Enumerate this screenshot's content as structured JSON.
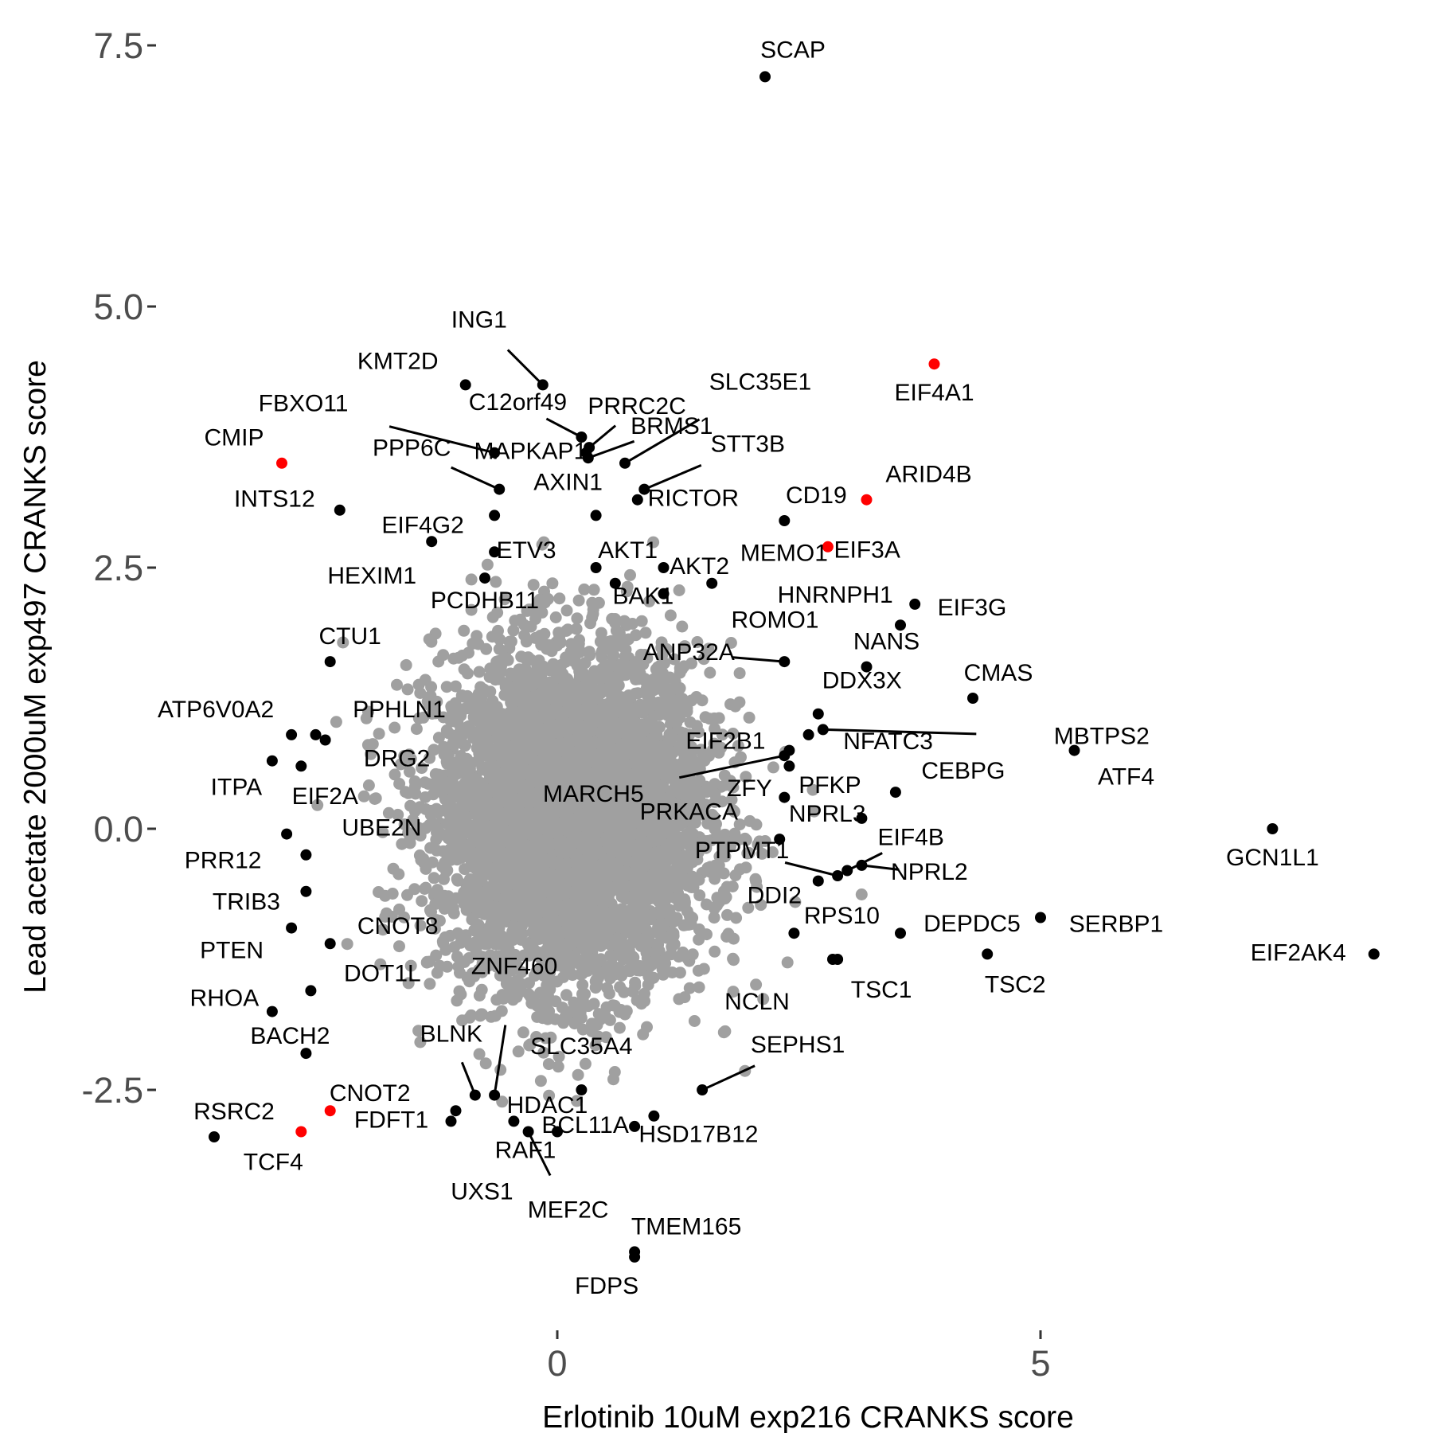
{
  "chart_data": {
    "type": "scatter",
    "xlabel": "Erlotinib 10uM exp216 CRANKS score",
    "ylabel": "Lead acetate 2000uM exp497 CRANKS score",
    "xlim": [
      -3.9,
      8.5
    ],
    "ylim": [
      -4.7,
      7.8
    ],
    "x_ticks": [
      {
        "value": 0,
        "label": "0"
      },
      {
        "value": 5,
        "label": "5"
      }
    ],
    "y_ticks": [
      {
        "value": 7.5,
        "label": "7.5"
      },
      {
        "value": 5.0,
        "label": "5.0"
      },
      {
        "value": 2.5,
        "label": "2.5"
      },
      {
        "value": 0.0,
        "label": "0.0"
      },
      {
        "value": -2.5,
        "label": "-2.5"
      }
    ],
    "grid": false,
    "background_color": "#ffffff",
    "colors": {
      "background_genes": "#a0a0a0",
      "labeled_genes": "#000000",
      "highlighted_genes": "#ff0000"
    },
    "background_cloud": {
      "description": "thousands of unlabeled genes (gray), roughly centered at (0,0)",
      "center": [
        0.15,
        0.1
      ],
      "sd": [
        0.7,
        0.8
      ]
    },
    "labeled_genes": [
      {
        "label": "SCAP",
        "x": 2.15,
        "y": 7.2,
        "color": "black"
      },
      {
        "label": "EIF4A1",
        "x": 3.9,
        "y": 4.45,
        "color": "red"
      },
      {
        "label": "ING1",
        "x": -0.15,
        "y": 4.25,
        "color": "black"
      },
      {
        "label": "KMT2D",
        "x": -0.95,
        "y": 4.25,
        "color": "black"
      },
      {
        "label": "PRRC2C",
        "x": 0.33,
        "y": 3.65,
        "color": "black"
      },
      {
        "label": "SLC35E1",
        "x": 0.7,
        "y": 3.5,
        "color": "black"
      },
      {
        "label": "C12orf49",
        "x": 0.25,
        "y": 3.75,
        "color": "black"
      },
      {
        "label": "BRMS1",
        "x": 0.32,
        "y": 3.55,
        "color": "black"
      },
      {
        "label": "FBXO11",
        "x": -0.65,
        "y": 3.6,
        "color": "black"
      },
      {
        "label": "MAPKAP1",
        "x": 0.3,
        "y": 3.6,
        "color": "black"
      },
      {
        "label": "CMIP",
        "x": -2.85,
        "y": 3.5,
        "color": "red"
      },
      {
        "label": "PPP6C",
        "x": -0.6,
        "y": 3.25,
        "color": "black"
      },
      {
        "label": "STT3B",
        "x": 0.9,
        "y": 3.25,
        "color": "black"
      },
      {
        "label": "ARID4B",
        "x": 3.2,
        "y": 3.15,
        "color": "red"
      },
      {
        "label": "INTS12",
        "x": -2.25,
        "y": 3.05,
        "color": "black"
      },
      {
        "label": "EIF4G2",
        "x": -0.65,
        "y": 3.0,
        "color": "black"
      },
      {
        "label": "AXIN1",
        "x": 0.4,
        "y": 3.0,
        "color": "black"
      },
      {
        "label": "RICTOR",
        "x": 0.83,
        "y": 3.15,
        "color": "black"
      },
      {
        "label": "CD19",
        "x": 2.35,
        "y": 2.95,
        "color": "black"
      },
      {
        "label": "MEMO1",
        "x": 2.8,
        "y": 2.7,
        "color": "red"
      },
      {
        "label": "HEXIM1",
        "x": -1.3,
        "y": 2.75,
        "color": "black"
      },
      {
        "label": "ETV3",
        "x": -0.65,
        "y": 2.65,
        "color": "black"
      },
      {
        "label": "AKT1",
        "x": 0.4,
        "y": 2.5,
        "color": "black"
      },
      {
        "label": "AKT2",
        "x": 1.1,
        "y": 2.5,
        "color": "black"
      },
      {
        "label": "EIF3A",
        "x": 1.6,
        "y": 2.35,
        "color": "black"
      },
      {
        "label": "HNRNPH1",
        "x": 3.7,
        "y": 2.15,
        "color": "black"
      },
      {
        "label": "EIF3G",
        "x": 3.55,
        "y": 1.95,
        "color": "black"
      },
      {
        "label": "PCDHB11",
        "x": -0.75,
        "y": 2.4,
        "color": "black"
      },
      {
        "label": "BAK1",
        "x": 0.6,
        "y": 2.35,
        "color": "black"
      },
      {
        "label": "ROMO1",
        "x": 1.1,
        "y": 2.25,
        "color": "black"
      },
      {
        "label": "NANS",
        "x": 3.2,
        "y": 1.55,
        "color": "black"
      },
      {
        "label": "CTU1",
        "x": -2.35,
        "y": 1.6,
        "color": "black"
      },
      {
        "label": "CMAS",
        "x": 4.3,
        "y": 1.25,
        "color": "black"
      },
      {
        "label": "ANP32A",
        "x": 2.35,
        "y": 1.6,
        "color": "black"
      },
      {
        "label": "DDX3X",
        "x": 2.7,
        "y": 1.1,
        "color": "black"
      },
      {
        "label": "MBTPS2",
        "x": 2.75,
        "y": 0.95,
        "color": "black"
      },
      {
        "label": "NFATC3",
        "x": 2.6,
        "y": 0.9,
        "color": "black"
      },
      {
        "label": "ATP6V0A2",
        "x": -2.75,
        "y": 0.9,
        "color": "black"
      },
      {
        "label": "PPHLN1",
        "x": -2.5,
        "y": 0.9,
        "color": "black"
      },
      {
        "label": "DRG2",
        "x": -2.4,
        "y": 0.85,
        "color": "black"
      },
      {
        "label": "EIF2B1",
        "x": 2.4,
        "y": 0.75,
        "color": "black"
      },
      {
        "label": "ATF4",
        "x": 5.35,
        "y": 0.75,
        "color": "black"
      },
      {
        "label": "ITPA",
        "x": -2.95,
        "y": 0.65,
        "color": "black"
      },
      {
        "label": "EIF2A",
        "x": -2.65,
        "y": 0.6,
        "color": "black"
      },
      {
        "label": "MARCH5",
        "x": 2.35,
        "y": 0.7,
        "color": "black"
      },
      {
        "label": "ZFY",
        "x": 2.4,
        "y": 0.6,
        "color": "black"
      },
      {
        "label": "PFKP",
        "x": 3.15,
        "y": 0.1,
        "color": "black"
      },
      {
        "label": "CEBPG",
        "x": 3.5,
        "y": 0.35,
        "color": "black"
      },
      {
        "label": "PRKACA",
        "x": 2.35,
        "y": 0.3,
        "color": "black"
      },
      {
        "label": "NPRL3",
        "x": 2.3,
        "y": -0.1,
        "color": "black"
      },
      {
        "label": "EIF4B",
        "x": 3.0,
        "y": -0.4,
        "color": "black"
      },
      {
        "label": "GCN1L1",
        "x": 7.4,
        "y": 0.0,
        "color": "black"
      },
      {
        "label": "PRR12",
        "x": -2.8,
        "y": -0.05,
        "color": "black"
      },
      {
        "label": "NPRL2",
        "x": 3.15,
        "y": -0.35,
        "color": "black"
      },
      {
        "label": "DDI2",
        "x": 2.7,
        "y": -0.5,
        "color": "black"
      },
      {
        "label": "UBE2N",
        "x": -2.6,
        "y": -0.25,
        "color": "black"
      },
      {
        "label": "TRIB3",
        "x": -2.6,
        "y": -0.6,
        "color": "black"
      },
      {
        "label": "RPS10",
        "x": 2.45,
        "y": -1.0,
        "color": "black"
      },
      {
        "label": "PTPMT1",
        "x": 2.9,
        "y": -0.45,
        "color": "black"
      },
      {
        "label": "DEPDC5",
        "x": 3.55,
        "y": -1.0,
        "color": "black"
      },
      {
        "label": "SERBP1",
        "x": 5.0,
        "y": -0.85,
        "color": "black"
      },
      {
        "label": "CNOT8",
        "x": -2.35,
        "y": -1.1,
        "color": "black"
      },
      {
        "label": "PTEN",
        "x": -2.75,
        "y": -0.95,
        "color": "black"
      },
      {
        "label": "NCLN",
        "x": 2.85,
        "y": -1.25,
        "color": "black"
      },
      {
        "label": "TSC1",
        "x": 2.9,
        "y": -1.25,
        "color": "black"
      },
      {
        "label": "TSC2",
        "x": 4.45,
        "y": -1.2,
        "color": "black"
      },
      {
        "label": "EIF2AK4",
        "x": 8.45,
        "y": -1.2,
        "color": "black"
      },
      {
        "label": "DOT1L",
        "x": -2.55,
        "y": -1.55,
        "color": "black"
      },
      {
        "label": "RHOA",
        "x": -2.95,
        "y": -1.75,
        "color": "black"
      },
      {
        "label": "ZNF460",
        "x": -0.65,
        "y": -2.55,
        "color": "black"
      },
      {
        "label": "BACH2",
        "x": -2.6,
        "y": -2.15,
        "color": "black"
      },
      {
        "label": "BLNK",
        "x": -0.85,
        "y": -2.55,
        "color": "black"
      },
      {
        "label": "SLC35A4",
        "x": 0.25,
        "y": -2.5,
        "color": "black"
      },
      {
        "label": "SEPHS1",
        "x": 1.5,
        "y": -2.5,
        "color": "black"
      },
      {
        "label": "HDAC1",
        "x": -1.05,
        "y": -2.7,
        "color": "black"
      },
      {
        "label": "BCL11A",
        "x": 0.8,
        "y": -2.85,
        "color": "black"
      },
      {
        "label": "CNOT2",
        "x": -2.35,
        "y": -2.7,
        "color": "red"
      },
      {
        "label": "RSRC2",
        "x": -3.55,
        "y": -2.95,
        "color": "black"
      },
      {
        "label": "TCF4",
        "x": -2.65,
        "y": -2.9,
        "color": "red"
      },
      {
        "label": "FDFT1",
        "x": -1.1,
        "y": -2.8,
        "color": "black"
      },
      {
        "label": "UXS1",
        "x": -0.45,
        "y": -2.8,
        "color": "black"
      },
      {
        "label": "RAF1",
        "x": 0.0,
        "y": -2.9,
        "color": "black"
      },
      {
        "label": "HSD17B12",
        "x": 1.0,
        "y": -2.75,
        "color": "black"
      },
      {
        "label": "MEF2C",
        "x": -0.3,
        "y": -2.9,
        "color": "black"
      },
      {
        "label": "TMEM165",
        "x": 0.8,
        "y": -4.05,
        "color": "black"
      },
      {
        "label": "FDPS",
        "x": 0.8,
        "y": -4.1,
        "color": "black"
      }
    ]
  }
}
